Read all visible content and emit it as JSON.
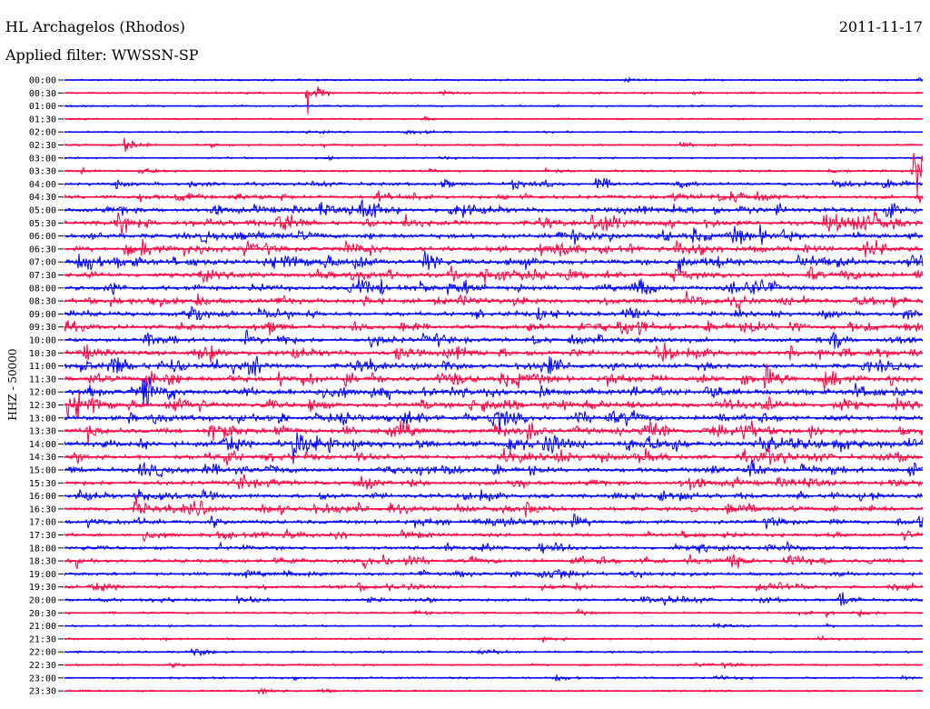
{
  "header": {
    "station": "HL Archagelos (Rhodos)",
    "date": "2011-11-17",
    "filter": "Applied filter: WWSSN-SP",
    "channel_label": "HHZ - 50000"
  },
  "colors": {
    "even_row": "#0000ff",
    "odd_row": "#ff0040"
  },
  "chart_data": {
    "type": "line",
    "title": "HL Archagelos (Rhodos)",
    "subtitle": "Applied filter: WWSSN-SP",
    "ylabel": "HHZ - 50000",
    "xlabel": "",
    "rows": [
      "00:00",
      "00:30",
      "01:00",
      "01:30",
      "02:00",
      "02:30",
      "03:00",
      "03:30",
      "04:00",
      "04:30",
      "05:00",
      "05:30",
      "06:00",
      "06:30",
      "07:00",
      "07:30",
      "08:00",
      "08:30",
      "09:00",
      "09:30",
      "10:00",
      "10:30",
      "11:00",
      "11:30",
      "12:00",
      "12:30",
      "13:00",
      "13:30",
      "14:00",
      "14:30",
      "15:00",
      "15:30",
      "16:00",
      "16:30",
      "17:00",
      "17:30",
      "18:00",
      "18:30",
      "19:00",
      "19:30",
      "20:00",
      "20:30",
      "21:00",
      "21:30",
      "22:00",
      "22:30",
      "23:00",
      "23:30"
    ],
    "row_colors": "alternating blue (even rows) and red (odd rows)",
    "activity_level": [
      0.05,
      0.08,
      0.03,
      0.03,
      0.06,
      0.08,
      0.06,
      0.12,
      0.35,
      0.4,
      0.55,
      0.6,
      0.6,
      0.65,
      0.7,
      0.6,
      0.6,
      0.6,
      0.55,
      0.6,
      0.55,
      0.6,
      0.65,
      0.7,
      0.75,
      0.7,
      0.65,
      0.7,
      0.75,
      0.65,
      0.6,
      0.55,
      0.5,
      0.5,
      0.45,
      0.4,
      0.4,
      0.45,
      0.35,
      0.35,
      0.25,
      0.15,
      0.05,
      0.08,
      0.1,
      0.08,
      0.1,
      0.05
    ],
    "events": [
      {
        "row": "00:30",
        "t_minutes": 8.5,
        "amplitude": 3
      },
      {
        "row": "02:30",
        "t_minutes": 2.1,
        "amplitude": 2
      },
      {
        "row": "03:30",
        "t_minutes": 29.7,
        "amplitude": 5
      },
      {
        "row": "05:00",
        "t_minutes": 13.5,
        "amplitude": 2
      },
      {
        "row": "05:30",
        "t_minutes": 1.9,
        "amplitude": 2
      },
      {
        "row": "07:00",
        "t_minutes": 12.6,
        "amplitude": 2
      },
      {
        "row": "09:30",
        "t_minutes": 11.8,
        "amplitude": 2
      },
      {
        "row": "11:30",
        "t_minutes": 24.5,
        "amplitude": 2
      },
      {
        "row": "12:00",
        "t_minutes": 2.7,
        "amplitude": 2
      },
      {
        "row": "14:00",
        "t_minutes": 5.6,
        "amplitude": 2
      },
      {
        "row": "14:00",
        "t_minutes": 8.0,
        "amplitude": 2
      },
      {
        "row": "16:30",
        "t_minutes": 2.5,
        "amplitude": 2
      },
      {
        "row": "18:30",
        "t_minutes": 23.2,
        "amplitude": 2
      },
      {
        "row": "20:00",
        "t_minutes": 27.1,
        "amplitude": 2
      }
    ],
    "grid": false,
    "legend": "none"
  }
}
